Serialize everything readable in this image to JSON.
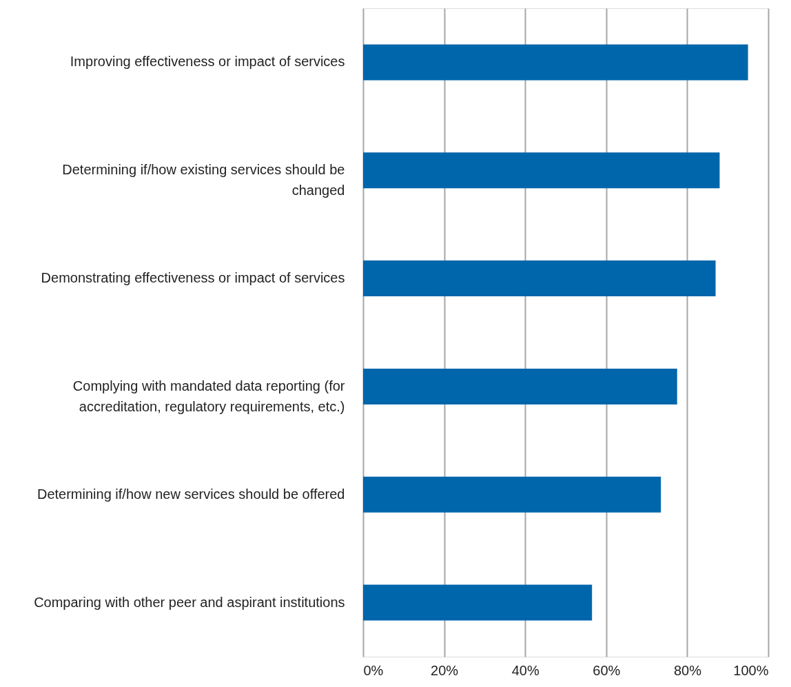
{
  "chart_data": {
    "type": "bar",
    "orientation": "horizontal",
    "categories": [
      "Improving effectiveness or impact of services",
      "Determining if/how existing services should be changed",
      "Demonstrating effectiveness or impact of services",
      "Complying with mandated data reporting (for accreditation, regulatory requirements, etc.)",
      "Determining if/how new services should be offered",
      "Comparing with other peer and aspirant institutions"
    ],
    "values": [
      95,
      88,
      87,
      77.5,
      73.5,
      56.5
    ],
    "color": "#0066ab",
    "xlim": [
      0,
      100
    ],
    "xticks": [
      {
        "value": 0,
        "label": "0%"
      },
      {
        "value": 20,
        "label": "20%"
      },
      {
        "value": 40,
        "label": "40%"
      },
      {
        "value": 60,
        "label": "60%"
      },
      {
        "value": 80,
        "label": "80%"
      },
      {
        "value": 100,
        "label": "100%"
      }
    ],
    "grid": "x"
  }
}
